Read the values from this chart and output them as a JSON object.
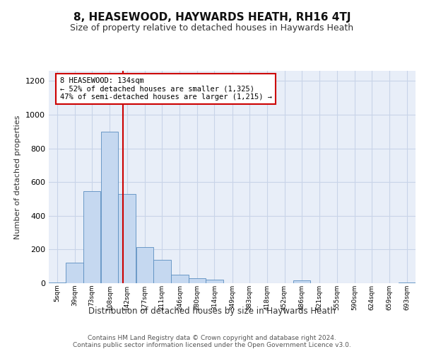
{
  "title": "8, HEASEWOOD, HAYWARDS HEATH, RH16 4TJ",
  "subtitle": "Size of property relative to detached houses in Haywards Heath",
  "xlabel": "Distribution of detached houses by size in Haywards Heath",
  "ylabel": "Number of detached properties",
  "bin_labels": [
    "5sqm",
    "39sqm",
    "73sqm",
    "108sqm",
    "142sqm",
    "177sqm",
    "211sqm",
    "246sqm",
    "280sqm",
    "314sqm",
    "349sqm",
    "383sqm",
    "418sqm",
    "452sqm",
    "486sqm",
    "521sqm",
    "555sqm",
    "590sqm",
    "624sqm",
    "659sqm",
    "693sqm"
  ],
  "bar_values": [
    5,
    120,
    545,
    900,
    530,
    215,
    140,
    50,
    30,
    20,
    0,
    0,
    0,
    0,
    15,
    0,
    0,
    0,
    0,
    0,
    5
  ],
  "bar_color": "#c5d8f0",
  "bar_edge_color": "#5a8ec0",
  "annotation_text": "8 HEASEWOOD: 134sqm\n← 52% of detached houses are smaller (1,325)\n47% of semi-detached houses are larger (1,215) →",
  "annotation_box_color": "#ffffff",
  "annotation_box_edge": "#cc0000",
  "vline_x": 134,
  "vline_color": "#cc0000",
  "ylim": [
    0,
    1260
  ],
  "yticks": [
    0,
    200,
    400,
    600,
    800,
    1000,
    1200
  ],
  "footer_text": "Contains HM Land Registry data © Crown copyright and database right 2024.\nContains public sector information licensed under the Open Government Licence v3.0.",
  "grid_color": "#c8d4e8",
  "bg_color": "#e8eef8",
  "title_fontsize": 11,
  "subtitle_fontsize": 9
}
